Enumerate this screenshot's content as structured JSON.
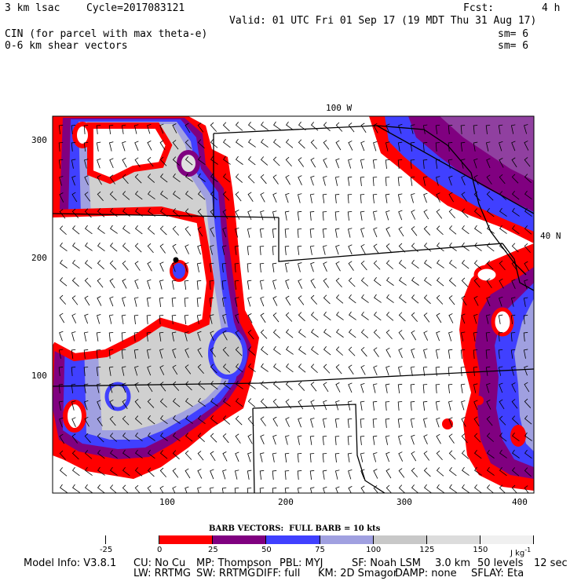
{
  "header": {
    "model_label": "3 km lsac",
    "cycle": "Cycle=2017083121",
    "fcst_label": "Fcst:",
    "fcst_value": "4 h",
    "valid": "Valid: 01 UTC Fri 01 Sep 17 (19 MDT Thu 31 Aug 17)",
    "field1": "CIN (for parcel with max theta-e)",
    "field1_sm": "sm= 6",
    "field2": "0-6 km shear vectors",
    "field2_sm": "sm= 6"
  },
  "map": {
    "lon_label": "100 W",
    "lat_label": "40 N",
    "y_ticks": [
      "300",
      "200",
      "100"
    ],
    "x_ticks": [
      "100",
      "200",
      "300",
      "400"
    ],
    "marker": "black-dot"
  },
  "colorbar": {
    "title": "BARB VECTORS:  FULL BARB = 10 kts",
    "labels": [
      "-25",
      "0",
      "25",
      "50",
      "75",
      "100",
      "125",
      "150"
    ],
    "unit": "J kg",
    "unit_exp": "-1",
    "colors": [
      "#ffffff",
      "#ffffff",
      "#ff0000",
      "#800080",
      "#4040ff",
      "#a0a0e0",
      "#c8c8c8",
      "#dcdcdc",
      "#f0f0f0"
    ]
  },
  "footer": {
    "line1": [
      "Model Info: V3.8.1",
      "CU: No Cu",
      "MP: Thompson",
      "PBL: MYJ",
      "SF: Noah LSM",
      "3.0 km",
      "50 levels",
      "12 sec"
    ],
    "line2": [
      "LW: RRTMG",
      "SW: RRTMG",
      "DIFF: full",
      "KM: 2D Smagor",
      "DAMP: none",
      "SFLAY: Eta"
    ]
  }
}
